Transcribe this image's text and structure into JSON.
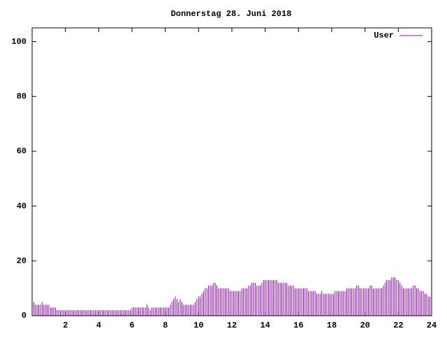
{
  "chart_data": {
    "type": "impulse",
    "title": "Donnerstag 28. Juni 2018",
    "series": [
      {
        "name": "User",
        "color": "#9400d3",
        "x": [
          0,
          0.1,
          0.2,
          0.3,
          0.4,
          0.5,
          0.6,
          0.7,
          0.8,
          0.9,
          1,
          1.1,
          1.2,
          1.3,
          1.4,
          1.5,
          1.6,
          1.7,
          1.8,
          1.9,
          2,
          2.1,
          2.2,
          2.3,
          2.4,
          2.5,
          2.6,
          2.7,
          2.8,
          2.9,
          3,
          3.1,
          3.2,
          3.3,
          3.4,
          3.5,
          3.6,
          3.7,
          3.8,
          3.9,
          4,
          4.1,
          4.2,
          4.3,
          4.4,
          4.5,
          4.6,
          4.7,
          4.8,
          4.9,
          5,
          5.1,
          5.2,
          5.3,
          5.4,
          5.5,
          5.6,
          5.7,
          5.8,
          5.9,
          6,
          6.1,
          6.2,
          6.3,
          6.4,
          6.5,
          6.6,
          6.7,
          6.8,
          6.9,
          7,
          7.1,
          7.2,
          7.3,
          7.4,
          7.5,
          7.6,
          7.7,
          7.8,
          7.9,
          8,
          8.1,
          8.2,
          8.3,
          8.4,
          8.5,
          8.6,
          8.7,
          8.8,
          8.9,
          9,
          9.1,
          9.2,
          9.3,
          9.4,
          9.5,
          9.6,
          9.7,
          9.8,
          9.9,
          10,
          10.1,
          10.2,
          10.3,
          10.4,
          10.5,
          10.6,
          10.7,
          10.8,
          10.9,
          11,
          11.1,
          11.2,
          11.3,
          11.4,
          11.5,
          11.6,
          11.7,
          11.8,
          11.9,
          12,
          12.1,
          12.2,
          12.3,
          12.4,
          12.5,
          12.6,
          12.7,
          12.8,
          12.9,
          13,
          13.1,
          13.2,
          13.3,
          13.4,
          13.5,
          13.6,
          13.7,
          13.8,
          13.9,
          14,
          14.1,
          14.2,
          14.3,
          14.4,
          14.5,
          14.6,
          14.7,
          14.8,
          14.9,
          15,
          15.1,
          15.2,
          15.3,
          15.4,
          15.5,
          15.6,
          15.7,
          15.8,
          15.9,
          16,
          16.1,
          16.2,
          16.3,
          16.4,
          16.5,
          16.6,
          16.7,
          16.8,
          16.9,
          17,
          17.1,
          17.2,
          17.3,
          17.4,
          17.5,
          17.6,
          17.7,
          17.8,
          17.9,
          18,
          18.1,
          18.2,
          18.3,
          18.4,
          18.5,
          18.6,
          18.7,
          18.8,
          18.9,
          19,
          19.1,
          19.2,
          19.3,
          19.4,
          19.5,
          19.6,
          19.7,
          19.8,
          19.9,
          20,
          20.1,
          20.2,
          20.3,
          20.4,
          20.5,
          20.6,
          20.7,
          20.8,
          20.9,
          21,
          21.1,
          21.2,
          21.3,
          21.4,
          21.5,
          21.6,
          21.7,
          21.8,
          21.9,
          22,
          22.1,
          22.2,
          22.3,
          22.4,
          22.5,
          22.6,
          22.7,
          22.8,
          22.9,
          23,
          23.1,
          23.2,
          23.3,
          23.4,
          23.5,
          23.6,
          23.7,
          23.8,
          23.9
        ],
        "values": [
          6,
          5,
          4,
          4,
          4,
          4,
          5,
          4,
          4,
          4,
          4,
          3,
          3,
          3,
          3,
          2,
          2,
          2,
          2,
          2,
          2,
          2,
          2,
          2,
          2,
          2,
          2,
          2,
          2,
          2,
          2,
          2,
          2,
          2,
          2,
          2,
          2,
          2,
          2,
          2,
          2,
          2,
          2,
          2,
          2,
          2,
          2,
          2,
          2,
          2,
          2,
          2,
          2,
          2,
          2,
          2,
          2,
          2,
          2,
          2,
          3,
          3,
          3,
          3,
          3,
          3,
          3,
          3,
          3,
          4,
          3,
          2,
          3,
          3,
          3,
          3,
          3,
          3,
          3,
          3,
          3,
          3,
          3,
          4,
          5,
          6,
          7,
          6,
          5,
          6,
          5,
          4,
          4,
          4,
          4,
          4,
          4,
          4,
          5,
          6,
          7,
          7,
          8,
          9,
          10,
          10,
          11,
          11,
          11,
          12,
          12,
          11,
          10,
          10,
          10,
          10,
          10,
          10,
          10,
          9,
          9,
          9,
          9,
          9,
          9,
          9,
          10,
          10,
          10,
          10,
          11,
          11,
          12,
          12,
          12,
          11,
          11,
          11,
          12,
          13,
          13,
          13,
          13,
          13,
          13,
          13,
          13,
          13,
          12,
          12,
          12,
          12,
          12,
          12,
          11,
          11,
          11,
          11,
          10,
          10,
          10,
          10,
          10,
          10,
          10,
          10,
          9,
          9,
          9,
          9,
          9,
          8,
          8,
          8,
          9,
          8,
          8,
          8,
          8,
          8,
          8,
          8,
          9,
          9,
          9,
          9,
          9,
          9,
          9,
          10,
          10,
          10,
          10,
          10,
          10,
          11,
          11,
          10,
          10,
          10,
          10,
          10,
          10,
          11,
          11,
          10,
          10,
          10,
          10,
          10,
          10,
          11,
          12,
          13,
          13,
          13,
          14,
          14,
          14,
          13,
          13,
          12,
          11,
          10,
          10,
          10,
          10,
          10,
          10,
          11,
          11,
          10,
          10,
          9,
          9,
          9,
          8,
          8,
          7,
          7
        ]
      }
    ],
    "xlim": [
      0,
      24
    ],
    "xticks": [
      2,
      4,
      6,
      8,
      10,
      12,
      14,
      16,
      18,
      20,
      22,
      24
    ],
    "ylim": [
      0,
      105
    ],
    "yticks": [
      0,
      20,
      40,
      60,
      80,
      100
    ],
    "legend": "top-right"
  }
}
